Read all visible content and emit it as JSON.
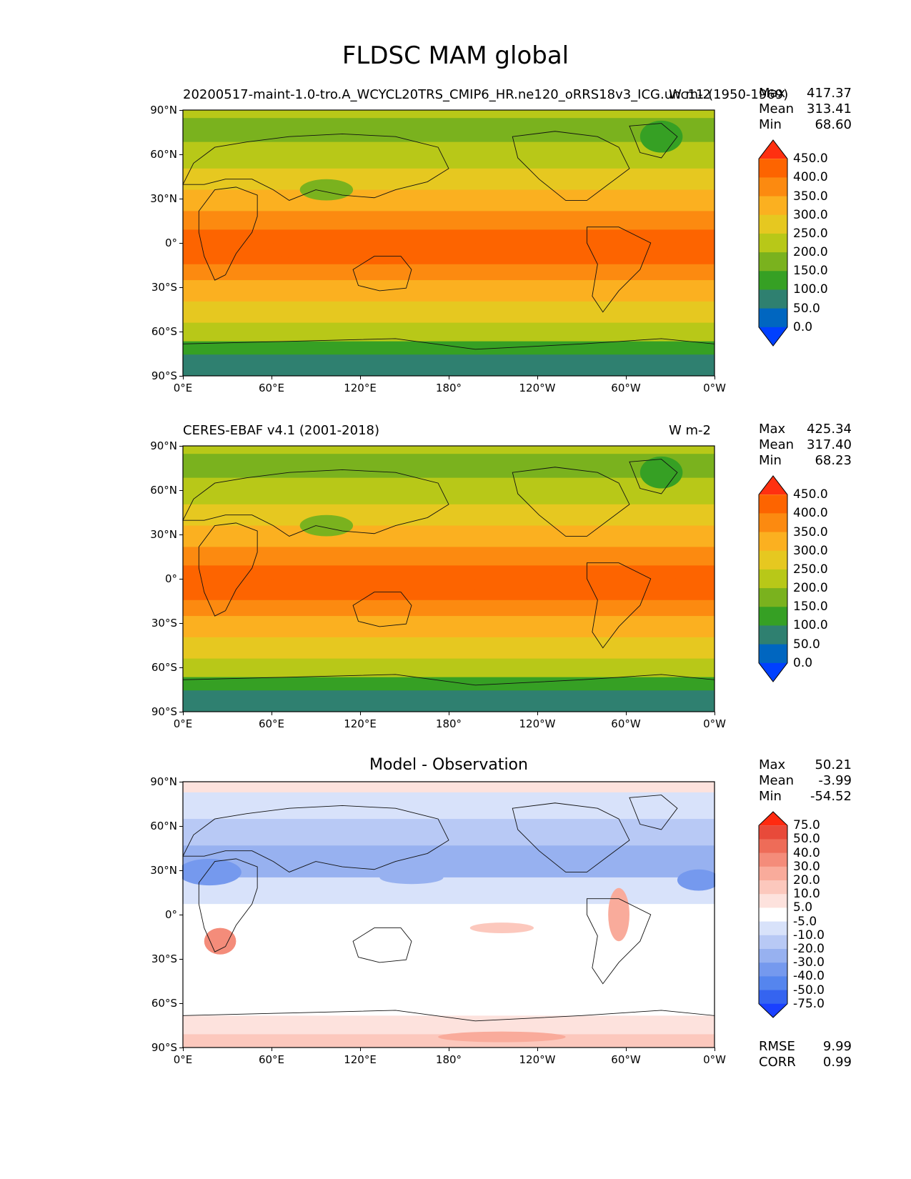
{
  "figure": {
    "title": "FLDSC MAM global"
  },
  "colors": {
    "abs_levels": [
      "#0040ff",
      "#0066c0",
      "#2f8070",
      "#36a024",
      "#7ab21e",
      "#b8c818",
      "#e6c820",
      "#fbb020",
      "#fc8a10",
      "#fd6400",
      "#ff3010"
    ],
    "diff_levels": [
      "#1a40ff",
      "#3564f0",
      "#5585ee",
      "#7599ee",
      "#97b1f0",
      "#b8c9f5",
      "#d8e2fa",
      "#ffffff",
      "#fde2dd",
      "#fcc8bd",
      "#f9ab9b",
      "#f48c7a",
      "#ee6c58",
      "#e84a3a",
      "#ff2a10"
    ]
  },
  "axes": {
    "lat_ticks": [
      "90°N",
      "60°N",
      "30°N",
      "0°",
      "30°S",
      "60°S",
      "90°S"
    ],
    "lon_ticks": [
      "0°E",
      "60°E",
      "120°E",
      "180°",
      "120°W",
      "60°W",
      "0°W"
    ]
  },
  "panels": [
    {
      "left_title": "20200517-maint-1.0-tro.A_WCYCL20TRS_CMIP6_HR.ne120_oRRS18v3_ICG.unc11 (1950-1969)",
      "center_title": "",
      "right_title": "W m-2",
      "stats": [
        {
          "label": "Max",
          "value": "417.37"
        },
        {
          "label": "Mean",
          "value": "313.41"
        },
        {
          "label": "Min",
          "value": "68.60"
        }
      ],
      "colorbar": [
        "450.0",
        "400.0",
        "350.0",
        "300.0",
        "250.0",
        "200.0",
        "150.0",
        "100.0",
        "50.0",
        "0.0"
      ]
    },
    {
      "left_title": "CERES-EBAF v4.1 (2001-2018)",
      "center_title": "",
      "right_title": "W m-2",
      "stats": [
        {
          "label": "Max",
          "value": "425.34"
        },
        {
          "label": "Mean",
          "value": "317.40"
        },
        {
          "label": "Min",
          "value": "68.23"
        }
      ],
      "colorbar": [
        "450.0",
        "400.0",
        "350.0",
        "300.0",
        "250.0",
        "200.0",
        "150.0",
        "100.0",
        "50.0",
        "0.0"
      ]
    },
    {
      "left_title": "",
      "center_title": "Model - Observation",
      "right_title": "",
      "stats": [
        {
          "label": "Max",
          "value": "50.21"
        },
        {
          "label": "Mean",
          "value": "-3.99"
        },
        {
          "label": "Min",
          "value": "-54.52"
        }
      ],
      "colorbar": [
        "75.0",
        "50.0",
        "40.0",
        "30.0",
        "20.0",
        "10.0",
        "5.0",
        "-5.0",
        "-10.0",
        "-20.0",
        "-30.0",
        "-40.0",
        "-50.0",
        "-75.0"
      ],
      "metrics": [
        {
          "label": "RMSE",
          "value": "9.99"
        },
        {
          "label": "CORR",
          "value": "0.99"
        }
      ]
    }
  ],
  "chart_data": [
    {
      "type": "heatmap",
      "title": "20200517-maint-1.0-tro.A_WCYCL20TRS_CMIP6_HR.ne120_oRRS18v3_ICG.unc11 (1950-1969)",
      "units": "W m-2",
      "x": [
        "0°E",
        "60°E",
        "120°E",
        "180°",
        "120°W",
        "60°W",
        "0°W"
      ],
      "y": [
        "90°N",
        "60°N",
        "30°N",
        "0°",
        "30°S",
        "60°S",
        "90°S"
      ],
      "levels": [
        0,
        50,
        100,
        150,
        200,
        250,
        300,
        350,
        400,
        450
      ],
      "max": 417.37,
      "mean": 313.41,
      "min": 68.6
    },
    {
      "type": "heatmap",
      "title": "CERES-EBAF v4.1 (2001-2018)",
      "units": "W m-2",
      "x": [
        "0°E",
        "60°E",
        "120°E",
        "180°",
        "120°W",
        "60°W",
        "0°W"
      ],
      "y": [
        "90°N",
        "60°N",
        "30°N",
        "0°",
        "30°S",
        "60°S",
        "90°S"
      ],
      "levels": [
        0,
        50,
        100,
        150,
        200,
        250,
        300,
        350,
        400,
        450
      ],
      "max": 425.34,
      "mean": 317.4,
      "min": 68.23
    },
    {
      "type": "heatmap",
      "title": "Model - Observation",
      "x": [
        "0°E",
        "60°E",
        "120°E",
        "180°",
        "120°W",
        "60°W",
        "0°W"
      ],
      "y": [
        "90°N",
        "60°N",
        "30°N",
        "0°",
        "30°S",
        "60°S",
        "90°S"
      ],
      "levels": [
        -75,
        -50,
        -40,
        -30,
        -20,
        -10,
        -5,
        5,
        10,
        20,
        30,
        40,
        50,
        75
      ],
      "max": 50.21,
      "mean": -3.99,
      "min": -54.52,
      "rmse": 9.99,
      "corr": 0.99
    }
  ]
}
